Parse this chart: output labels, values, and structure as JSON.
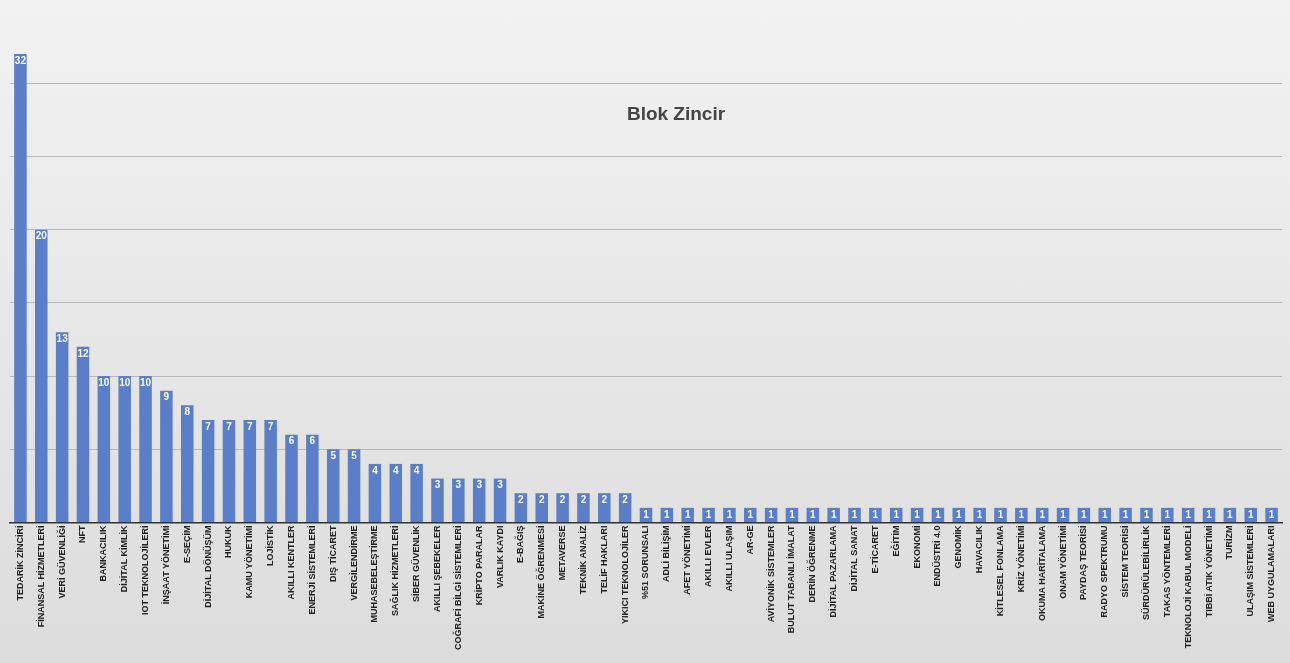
{
  "chart_data": {
    "type": "bar",
    "title": "Blok Zincir",
    "categories": [
      "TEDARİK ZİNCİRİ",
      "FİNANSAL HİZMETLERİ",
      "VERİ GÜVENLİĞİ",
      "NFT",
      "BANKACILIK",
      "DİJİTAL KİMLİK",
      "IOT TEKNOLOJİLERİ",
      "İNŞAAT YÖNETİMİ",
      "E-SEÇİM",
      "DİJİTAL DÖNÜŞÜM",
      "HUKUK",
      "KAMU YÖNETİMİ",
      "LOJİSTİK",
      "AKILLI KENTLER",
      "ENERJİ SİSTEMLERİ",
      "DIŞ TİCARET",
      "VERGİLENDİRME",
      "MUHASEBELEŞTİRME",
      "SAĞLIK HİZMETLERİ",
      "SİBER GÜVENLİK",
      "AKILLI ŞEBEKELER",
      "COĞRAFİ BİLGİ SİSTEMLERİ",
      "KRİPTO PARALAR",
      "VARLIK KAYDI",
      "E-BAĞIŞ",
      "MAKİNE ÖĞRENMESİ",
      "METAVERSE",
      "TEKNİK ANALİZ",
      "TELİF HAKLARI",
      "YIKICI TEKNOLOJİLER",
      "%51 SORUNSALI",
      "ADLİ BİLİŞİM",
      "AFET YÖNETİMİ",
      "AKILLI EVLER",
      "AKILLI ULAŞIM",
      "AR-GE",
      "AVİYONİK SİSTEMLER",
      "BULUT TABANLI İMALAT",
      "DERİN ÖĞRENME",
      "DİJİTAL PAZARLAMA",
      "DİJİTAL SANAT",
      "E-TİCARET",
      "EĞİTİM",
      "EKONOMİ",
      "ENDÜSTRİ 4.0",
      "GENOMİK",
      "HAVACILIK",
      "KİTLESEL FONLAMA",
      "KRİZ YÖNETİMİ",
      "OKUMA HARİTALAMA",
      "ONAM YÖNETİMİ",
      "PAYDAŞ TEORİSİ",
      "RADYO SPEKTRUMU",
      "SİSTEM TEORİSİ",
      "SÜRDÜRÜLEBİLİRLİK",
      "TAKAS YÖNTEMLERİ",
      "TEKNOLOJİ KABUL MODELİ",
      "TIBBİ ATIK YÖNETİMİ",
      "TURİZM",
      "ULAŞIM SİSTEMLERİ",
      "WEB UYGULAMALARI"
    ],
    "values": [
      32,
      20,
      13,
      12,
      10,
      10,
      10,
      9,
      8,
      7,
      7,
      7,
      7,
      6,
      6,
      5,
      5,
      4,
      4,
      4,
      3,
      3,
      3,
      3,
      2,
      2,
      2,
      2,
      2,
      2,
      1,
      1,
      1,
      1,
      1,
      1,
      1,
      1,
      1,
      1,
      1,
      1,
      1,
      1,
      1,
      1,
      1,
      1,
      1,
      1,
      1,
      1,
      1,
      1,
      1,
      1,
      1,
      1,
      1,
      1,
      1
    ],
    "color": "#5a7ec7",
    "yticks": [
      {
        "value": 0,
        "label": null
      },
      {
        "value": 5,
        "label": null
      },
      {
        "value": 10,
        "label": null
      },
      {
        "value": 15,
        "label": null
      },
      {
        "value": 20,
        "label": null
      },
      {
        "value": 25,
        "label": null
      },
      {
        "value": 30,
        "label": null
      }
    ],
    "tick_labels": "x",
    "grid": "y",
    "data_labels": true
  }
}
